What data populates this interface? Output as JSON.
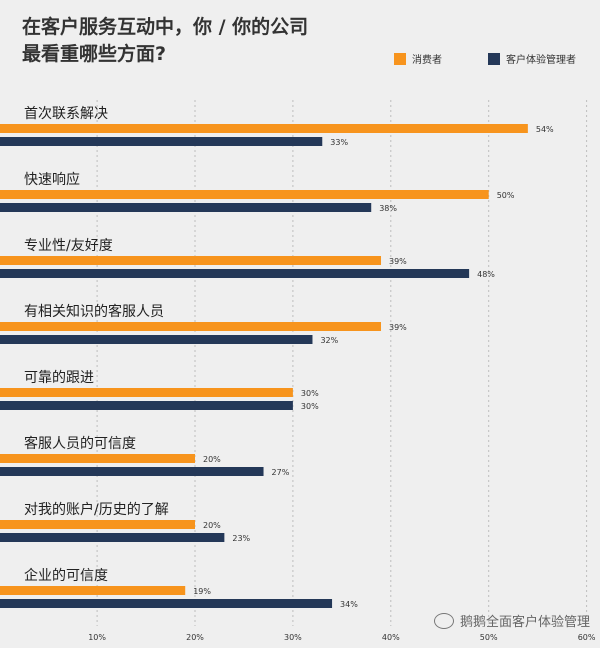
{
  "title": {
    "line1": "在客户服务互动中，你 / 你的公司",
    "line2": "最看重哪些方面?"
  },
  "legend": [
    {
      "name": "消费者",
      "color": "#f7941d"
    },
    {
      "name": "客户体验管理者",
      "color": "#243858"
    }
  ],
  "watermark": "鹅鹅全面客户体验管理",
  "chart_data": {
    "type": "bar",
    "orientation": "horizontal",
    "categories": [
      "首次联系解决",
      "快速响应",
      "专业性/友好度",
      "有相关知识的客服人员",
      "可靠的跟进",
      "客服人员的可信度",
      "对我的账户/历史的了解",
      "企业的可信度"
    ],
    "series": [
      {
        "name": "消费者",
        "values": [
          54,
          50,
          39,
          39,
          30,
          20,
          20,
          19
        ],
        "color": "#f7941d"
      },
      {
        "name": "客户体验管理者",
        "values": [
          33,
          38,
          48,
          32,
          30,
          27,
          23,
          34
        ],
        "color": "#243858"
      }
    ],
    "value_labels": [
      [
        "54%",
        "50%",
        "39%",
        "39%",
        "30%",
        "20%",
        "20%",
        "19%"
      ],
      [
        "33%",
        "38%",
        "48%",
        "32%",
        "30%",
        "27%",
        "23%",
        "34%"
      ]
    ],
    "x_ticks": [
      {
        "value": 10,
        "label": "10%"
      },
      {
        "value": 20,
        "label": "20%"
      },
      {
        "value": 30,
        "label": "30%"
      },
      {
        "value": 40,
        "label": "40%"
      },
      {
        "value": 50,
        "label": "50%"
      },
      {
        "value": 60,
        "label": "60%"
      }
    ],
    "xlim": [
      0,
      60
    ],
    "grid": "vertical-dotted",
    "legend_position": "top-right"
  }
}
